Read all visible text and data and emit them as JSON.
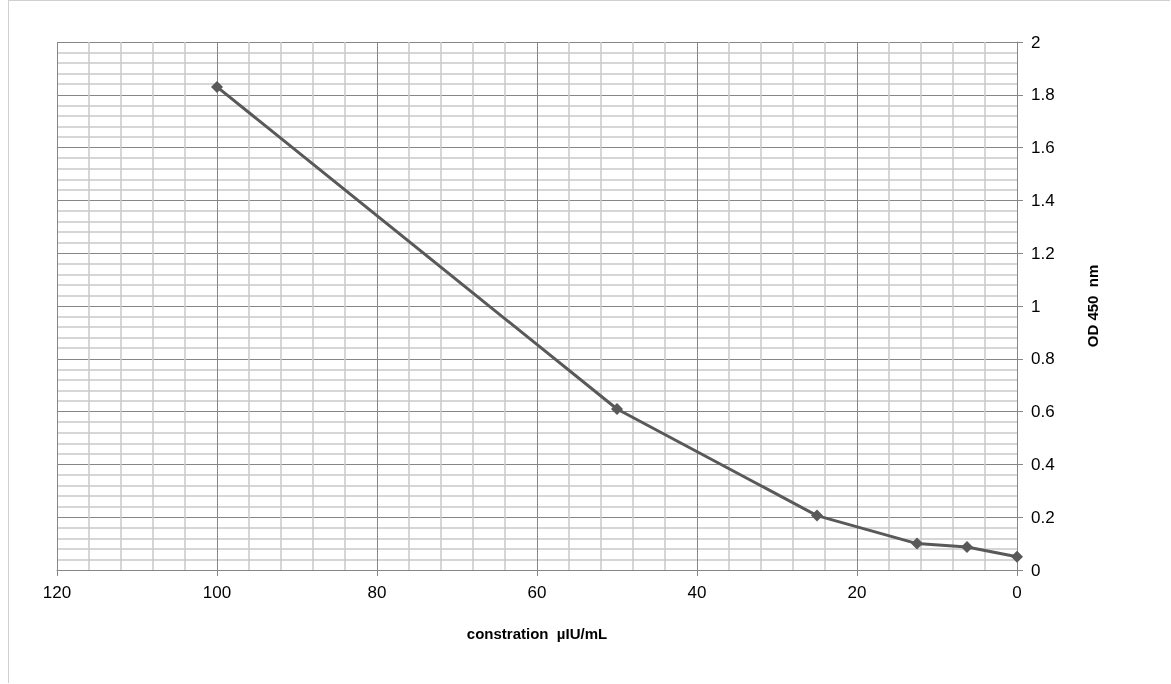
{
  "chart_data": {
    "type": "line",
    "xlabel": "constration  µIU/mL",
    "ylabel": "OD 450  nm",
    "x": [
      100,
      50,
      25,
      12.5,
      6.25,
      0
    ],
    "series": [
      {
        "color": "#595959",
        "values": [
          1.83,
          0.61,
          0.206,
          0.1,
          0.087,
          0.05
        ]
      }
    ],
    "xlim": [
      120,
      0
    ],
    "xticks": [
      120,
      100,
      80,
      60,
      40,
      20,
      0
    ],
    "ylim": [
      0,
      2
    ],
    "yticks": [
      0,
      0.2,
      0.4,
      0.6,
      0.8,
      1,
      1.2,
      1.4,
      1.6,
      1.8,
      2
    ],
    "grid": true,
    "marker": "diamond",
    "line_style": "solid"
  }
}
